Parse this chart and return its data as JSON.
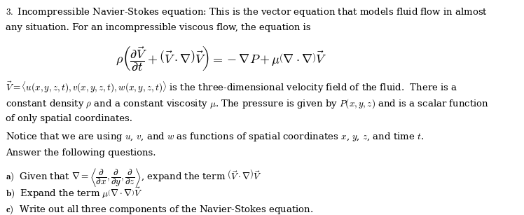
{
  "bg_color": "#ffffff",
  "text_color": "#000000",
  "fig_width": 7.48,
  "fig_height": 3.07,
  "dpi": 100,
  "heading": "3. Incompressible Navier-Stokes equation: This is the vector equation that models fluid flow in almost\nany situation. For an incompressible viscous flow, the equation is",
  "equation": "$\\rho\\left(\\dfrac{\\partial\\vec{V}}{\\partial t} + \\left(\\vec{V}\\cdot\\nabla\\right)\\vec{V}\\right) = -\\nabla P + \\mu\\left(\\nabla\\cdot\\nabla\\right)\\vec{V}$",
  "body": "$\\vec{V} = \\langle u(x,y,z,t), v(x,y,z,t), w(x,y,z,t)\\rangle$ is the three-dimensional velocity field of the fluid.  There is a\nconstant density $\\rho$ and a constant viscosity $\\mu$. The pressure is given by $P(x,y,z)$ and is a scalar function\nof only spatial coordinates.\nNotice that we are using $u$, $v$, and $w$ as functions of spatial coordinates $x$, $y$, $z$, and time $t$.\nAnswer the following questions.",
  "qa": "\\textbf{a)}  Given that $\\nabla = \\left\\langle\\dfrac{\\partial}{\\partial x}, \\dfrac{\\partial}{\\partial y}, \\dfrac{\\partial}{\\partial z}\\right\\rangle$, expand the term $\\left(\\vec{V}\\cdot\\nabla\\right)\\vec{V}$",
  "qb": "\\textbf{b)}  Expand the term $\\mu\\left(\\nabla\\cdot\\nabla\\right)\\vec{V}$",
  "qc": "\\textbf{c)}  Write out all three components of the Navier-Stokes equation.",
  "font_size_body": 9.5,
  "font_size_eq": 12,
  "font_size_head": 9.5
}
